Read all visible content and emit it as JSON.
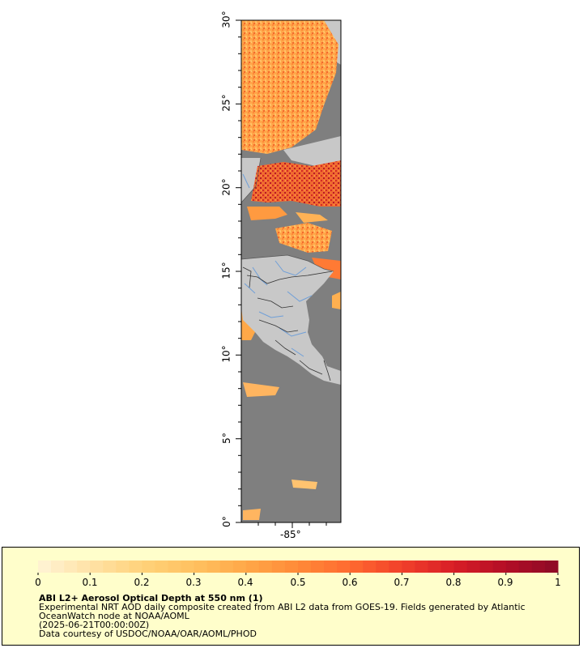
{
  "map": {
    "lat_ticks": [
      "0°",
      "5°",
      "10°",
      "15°",
      "20°",
      "25°",
      "30°"
    ],
    "lon_ticks": [
      "-85°"
    ],
    "colors": {
      "ocean_no_data": "#7f7f7f",
      "land": "#c8c8c8",
      "rivers": "#6f9fd8",
      "borders": "#333333"
    }
  },
  "colorbar": {
    "ticks": [
      "0",
      "0.1",
      "0.2",
      "0.3",
      "0.4",
      "0.5",
      "0.6",
      "0.7",
      "0.8",
      "0.9",
      "1"
    ],
    "colors": [
      "#fff4d6",
      "#ffe2a6",
      "#ffd27a",
      "#ffc160",
      "#ffa848",
      "#ff8a38",
      "#ff6a30",
      "#f1402a",
      "#d81e26",
      "#b30e26",
      "#8c0a26"
    ]
  },
  "legend": {
    "title": "ABI L2+ Aerosol Optical Depth at 550 nm (1)",
    "line1": "Experimental NRT AOD daily composite created from ABI L2 data from GOES-19. Fields generated by Atlantic",
    "line2": "OceanWatch node at NOAA/AOML",
    "line3": "(2025-06-21T00:00:00Z)",
    "line4": "Data courtesy of USDOC/NOAA/OAR/AOML/PHOD"
  }
}
